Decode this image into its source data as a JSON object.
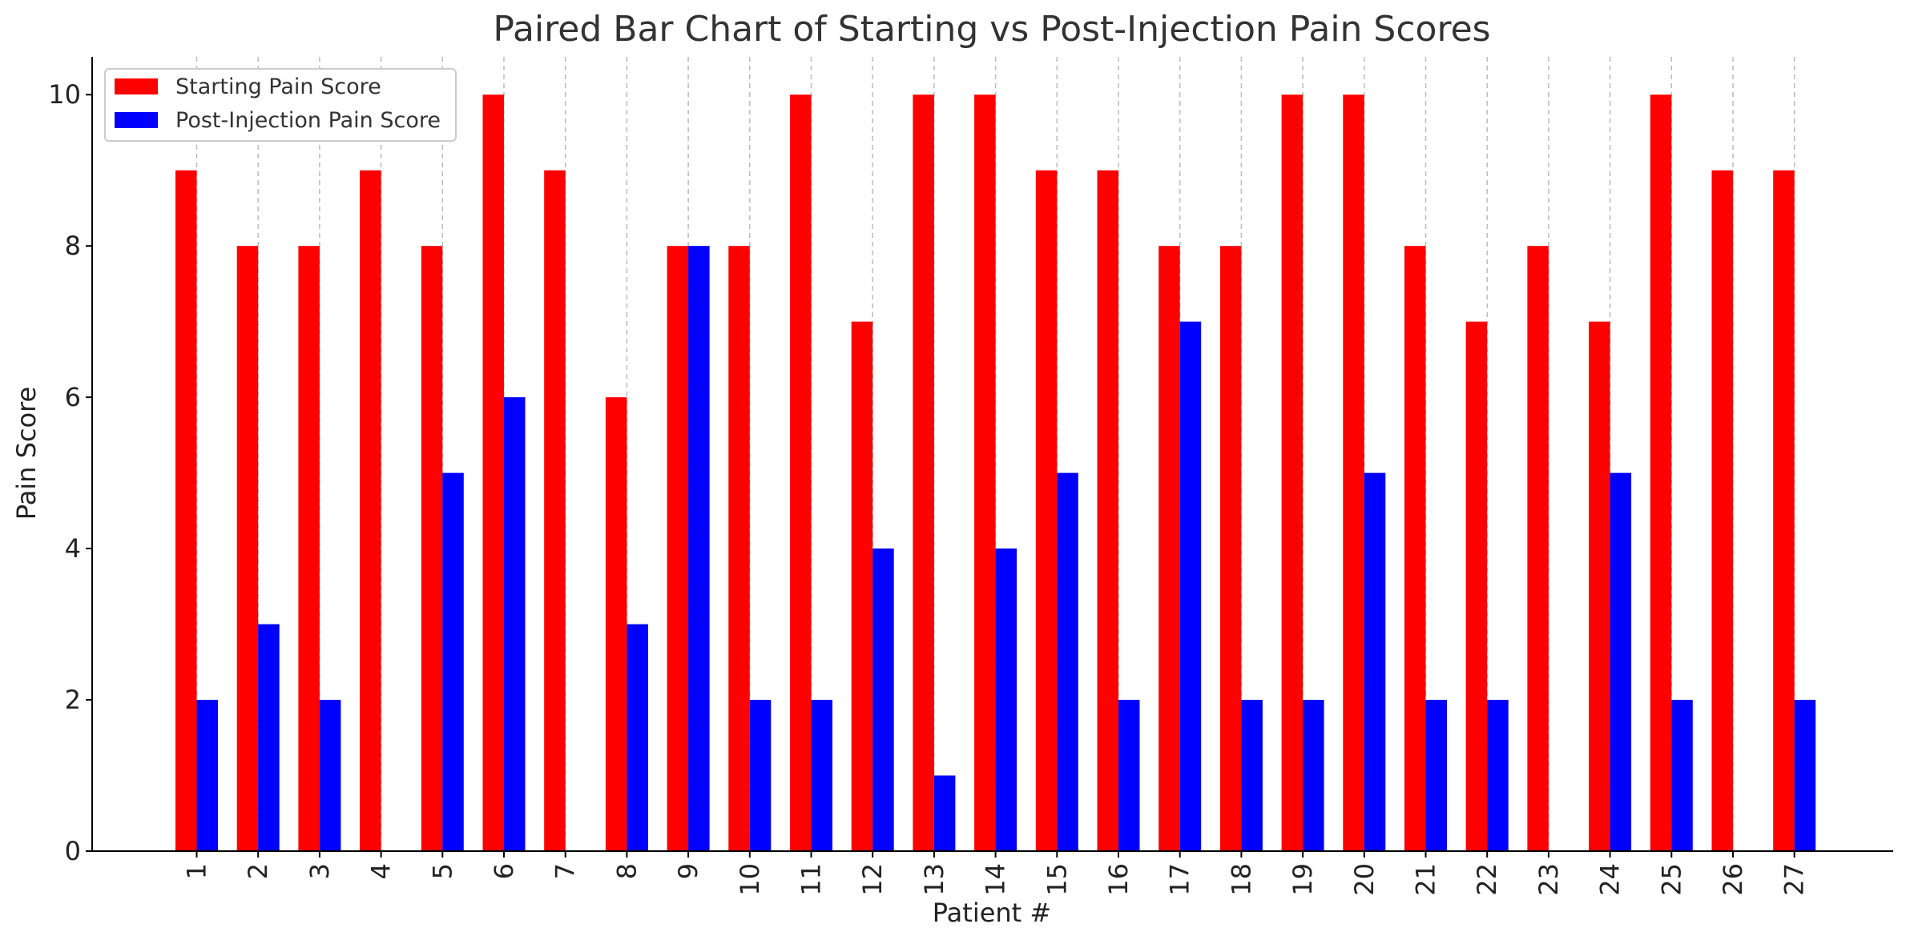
{
  "chart_data": {
    "type": "bar",
    "title": "Paired Bar Chart of Starting vs Post-Injection Pain Scores",
    "xlabel": "Patient #",
    "ylabel": "Pain Score",
    "categories": [
      "1",
      "2",
      "3",
      "4",
      "5",
      "6",
      "7",
      "8",
      "9",
      "10",
      "11",
      "12",
      "13",
      "14",
      "15",
      "16",
      "17",
      "18",
      "19",
      "20",
      "21",
      "22",
      "23",
      "24",
      "25",
      "26",
      "27"
    ],
    "series": [
      {
        "name": "Starting Pain Score",
        "color": "#ff0000",
        "values": [
          9,
          8,
          8,
          9,
          8,
          10,
          9,
          6,
          8,
          8,
          10,
          7,
          10,
          10,
          9,
          9,
          8,
          8,
          10,
          10,
          8,
          7,
          8,
          7,
          10,
          9,
          9
        ]
      },
      {
        "name": "Post-Injection Pain Score",
        "color": "#0000ff",
        "values": [
          2,
          3,
          2,
          0,
          5,
          6,
          0,
          3,
          8,
          2,
          2,
          4,
          1,
          4,
          5,
          2,
          7,
          2,
          2,
          5,
          2,
          2,
          0,
          5,
          2,
          0,
          2
        ]
      }
    ],
    "ylim": [
      0,
      10.5
    ],
    "yticks": [
      0,
      2,
      4,
      6,
      8,
      10
    ],
    "grid": "vertical dashed",
    "legend_position": "top-left"
  }
}
